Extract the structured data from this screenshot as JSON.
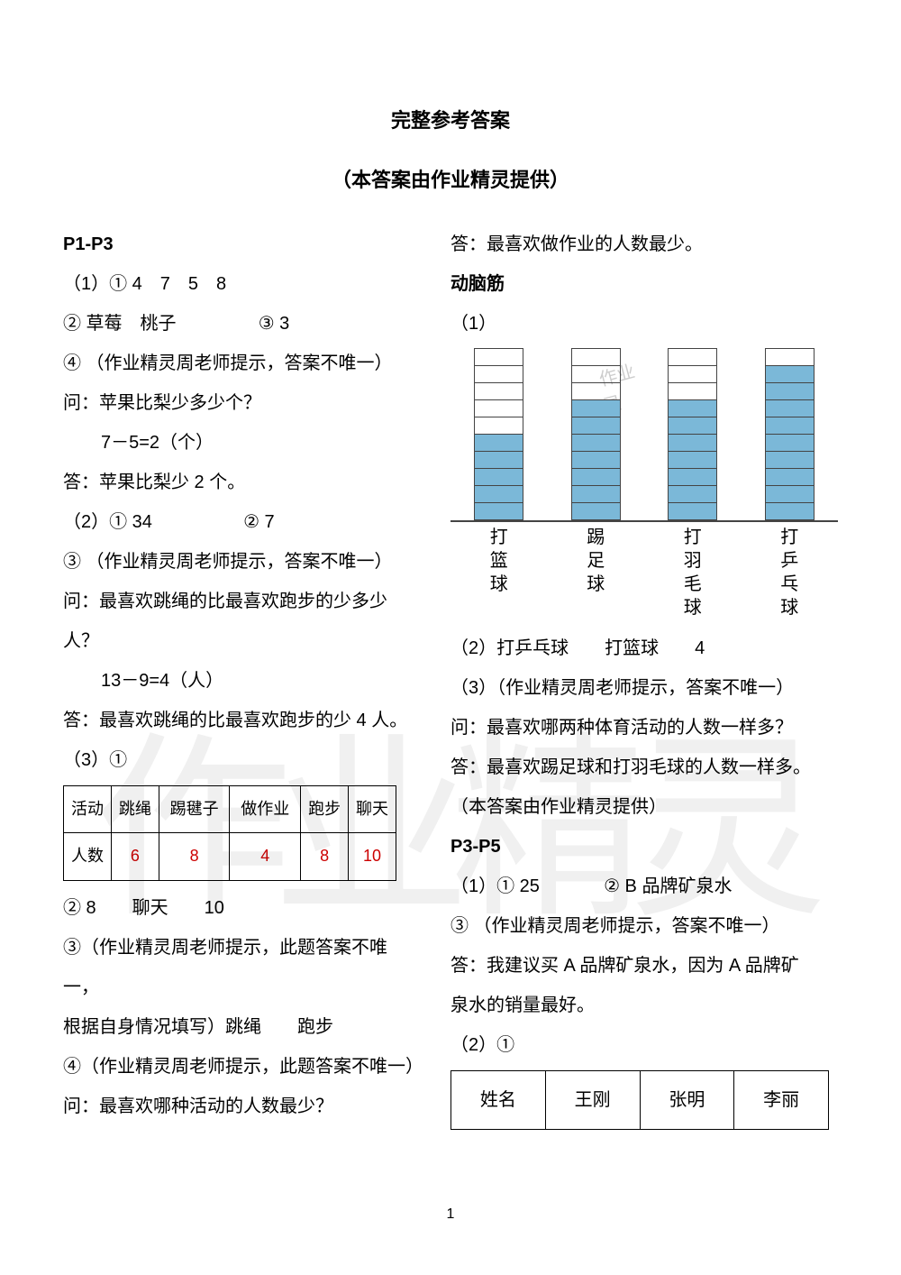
{
  "titles": {
    "main": "完整参考答案",
    "sub": "（本答案由作业精灵提供）"
  },
  "left": {
    "sec_head": "P1-P3",
    "l1": "（1）① 4　7　5　8",
    "l2_a": "② 草莓　桃子",
    "l2_b": "③ 3",
    "l3": "④ （作业精灵周老师提示，答案不唯一）",
    "l4": "问：苹果比梨少多少个？",
    "l5": "7－5=2（个）",
    "l6": "答：苹果比梨少 2 个。",
    "l7_a": "（2）① 34",
    "l7_b": "② 7",
    "l8": "③ （作业精灵周老师提示，答案不唯一）",
    "l9": "问：最喜欢跳绳的比最喜欢跑步的少多少",
    "l10": "人？",
    "l11": "13－9=4（人）",
    "l12": "答：最喜欢跳绳的比最喜欢跑步的少 4 人。",
    "l13": "（3）①",
    "table": {
      "headers": [
        "活动",
        "跳绳",
        "踢毽子",
        "做作业",
        "跑步",
        "聊天"
      ],
      "row_label": "人数",
      "values": [
        "6",
        "8",
        "4",
        "8",
        "10"
      ],
      "value_color": "#cc0000"
    },
    "l14": "② 8　　聊天　　10",
    "l15": "③（作业精灵周老师提示，此题答案不唯一，",
    "l16": "根据自身情况填写）跳绳　　跑步",
    "l17": "④（作业精灵周老师提示，此题答案不唯一）",
    "l18": "问：最喜欢哪种活动的人数最少？"
  },
  "right": {
    "l1": "答：最喜欢做作业的人数最少。",
    "brain_head": "动脑筋",
    "l2": "（1）",
    "chart": {
      "total_cells": 10,
      "bar_color": "#7bb8d8",
      "grid_color": "#444444",
      "bars": [
        {
          "label": "打篮球",
          "value": 5
        },
        {
          "label": "踢足球",
          "value": 7
        },
        {
          "label": "打羽毛球",
          "value": 7
        },
        {
          "label": "打乒乓球",
          "value": 9
        }
      ]
    },
    "l3": "（2）打乒乓球　　打篮球　　4",
    "l4": "（3）（作业精灵周老师提示，答案不唯一）",
    "l5": "问：最喜欢哪两种体育活动的人数一样多？",
    "l6": "答：最喜欢踢足球和打羽毛球的人数一样多。",
    "l7": "（本答案由作业精灵提供）",
    "sec2_head": "P3-P5",
    "l8_a": "（1）① 25",
    "l8_b": "② B 品牌矿泉水",
    "l9": "③ （作业精灵周老师提示，答案不唯一）",
    "l10": "答：我建议买 A 品牌矿泉水，因为 A 品牌矿",
    "l11": "泉水的销量最好。",
    "l12": "（2）①",
    "names_table": {
      "headers": [
        "姓名",
        "王刚",
        "张明",
        "李丽"
      ]
    }
  },
  "page_number": "1",
  "watermark_big": "作业精灵",
  "watermark_small1": "作业",
  "watermark_small2": "精灵"
}
